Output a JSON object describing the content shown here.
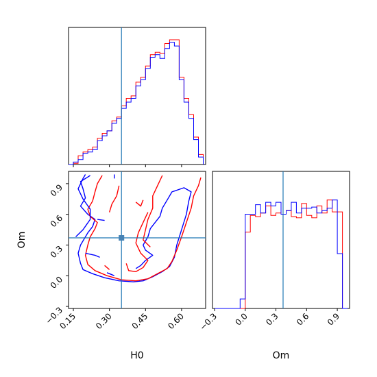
{
  "chart_data": {
    "type": "corner",
    "parameters": [
      "H0",
      "Om"
    ],
    "truth": {
      "H0": 0.35,
      "Om": 0.37
    },
    "colors": {
      "series_red": "#ff0000",
      "series_blue": "#0000ff",
      "truth": "#1f77b4"
    },
    "axes": {
      "H0": {
        "label": "H0",
        "range": [
          0.13,
          0.7
        ],
        "ticks": [
          "0.15",
          "0.30",
          "0.45",
          "0.60"
        ]
      },
      "Om": {
        "label": "Om",
        "range": [
          -0.32,
          1.02
        ],
        "ticks": [
          "−0.3",
          "0.0",
          "0.3",
          "0.6",
          "0.9"
        ]
      }
    },
    "hist_H0": {
      "edges": [
        0.13,
        0.15,
        0.17,
        0.19,
        0.21,
        0.23,
        0.25,
        0.27,
        0.29,
        0.31,
        0.33,
        0.35,
        0.37,
        0.39,
        0.41,
        0.43,
        0.45,
        0.47,
        0.49,
        0.51,
        0.53,
        0.55,
        0.57,
        0.59,
        0.61,
        0.63,
        0.65,
        0.67,
        0.69
      ],
      "series": [
        {
          "name": "",
          "color": "red",
          "values": [
            0.0,
            0.01,
            0.07,
            0.1,
            0.12,
            0.14,
            0.21,
            0.25,
            0.27,
            0.35,
            0.38,
            0.47,
            0.53,
            0.55,
            0.66,
            0.7,
            0.79,
            0.88,
            0.9,
            0.89,
            0.97,
            1.0,
            1.0,
            0.7,
            0.53,
            0.4,
            0.22,
            0.08
          ]
        },
        {
          "name": "",
          "color": "blue",
          "values": [
            0.0,
            0.02,
            0.04,
            0.09,
            0.1,
            0.12,
            0.19,
            0.23,
            0.27,
            0.33,
            0.37,
            0.45,
            0.5,
            0.53,
            0.63,
            0.68,
            0.77,
            0.86,
            0.88,
            0.85,
            0.93,
            0.98,
            0.95,
            0.68,
            0.5,
            0.37,
            0.2,
            0.06
          ]
        }
      ]
    },
    "hist_Om": {
      "edges": [
        -0.3,
        -0.25,
        -0.2,
        -0.15,
        -0.1,
        -0.05,
        0.0,
        0.05,
        0.1,
        0.15,
        0.2,
        0.25,
        0.3,
        0.35,
        0.4,
        0.45,
        0.5,
        0.55,
        0.6,
        0.65,
        0.7,
        0.75,
        0.8,
        0.85,
        0.9,
        0.95,
        1.0
      ],
      "series": [
        {
          "name": "",
          "color": "red",
          "values": [
            0,
            0,
            0,
            0,
            0,
            0.0,
            0.64,
            0.78,
            0.77,
            0.8,
            0.86,
            0.78,
            0.8,
            0.79,
            0.82,
            0.77,
            0.76,
            0.88,
            0.78,
            0.76,
            0.86,
            0.8,
            0.91,
            0.81,
            0.81,
            0.0
          ]
        },
        {
          "name": "",
          "color": "blue",
          "values": [
            0,
            0,
            0,
            0,
            0,
            0.08,
            0.79,
            0.79,
            0.87,
            0.8,
            0.89,
            0.86,
            0.89,
            0.79,
            0.82,
            0.89,
            0.8,
            0.84,
            0.84,
            0.85,
            0.8,
            0.82,
            0.84,
            0.91,
            0.46,
            0.0
          ]
        }
      ]
    },
    "contours": [
      {
        "color": "blue",
        "points": [
          [
            0.22,
            0.98
          ],
          [
            0.18,
            0.92
          ],
          [
            0.19,
            0.85
          ],
          [
            0.2,
            0.76
          ],
          [
            0.18,
            0.68
          ],
          [
            0.21,
            0.6
          ],
          [
            0.24,
            0.55
          ],
          [
            0.23,
            0.48
          ],
          [
            0.21,
            0.42
          ],
          [
            0.18,
            0.3
          ],
          [
            0.17,
            0.22
          ],
          [
            0.18,
            0.12
          ],
          [
            0.19,
            0.06
          ],
          [
            0.23,
            0.02
          ],
          [
            0.28,
            -0.02
          ],
          [
            0.34,
            -0.05
          ],
          [
            0.4,
            -0.06
          ],
          [
            0.44,
            -0.05
          ],
          [
            0.48,
            -0.01
          ],
          [
            0.52,
            0.04
          ],
          [
            0.55,
            0.09
          ],
          [
            0.57,
            0.18
          ],
          [
            0.58,
            0.3
          ],
          [
            0.6,
            0.45
          ],
          [
            0.62,
            0.6
          ],
          [
            0.63,
            0.73
          ],
          [
            0.64,
            0.82
          ],
          [
            0.61,
            0.86
          ],
          [
            0.56,
            0.82
          ],
          [
            0.54,
            0.74
          ],
          [
            0.52,
            0.66
          ],
          [
            0.51,
            0.58
          ],
          [
            0.49,
            0.52
          ],
          [
            0.47,
            0.46
          ],
          [
            0.46,
            0.38
          ],
          [
            0.44,
            0.3
          ],
          [
            0.45,
            0.25
          ],
          [
            0.48,
            0.2
          ],
          [
            0.45,
            0.15
          ],
          [
            0.43,
            0.1
          ],
          [
            0.41,
            0.07
          ]
        ]
      },
      {
        "color": "red",
        "points": [
          [
            0.27,
            0.98
          ],
          [
            0.25,
            0.9
          ],
          [
            0.24,
            0.82
          ],
          [
            0.23,
            0.73
          ],
          [
            0.21,
            0.65
          ],
          [
            0.22,
            0.58
          ],
          [
            0.25,
            0.52
          ],
          [
            0.24,
            0.46
          ],
          [
            0.22,
            0.38
          ],
          [
            0.21,
            0.3
          ],
          [
            0.2,
            0.2
          ],
          [
            0.21,
            0.11
          ],
          [
            0.24,
            0.05
          ],
          [
            0.29,
            0.0
          ],
          [
            0.35,
            -0.04
          ],
          [
            0.41,
            -0.05
          ],
          [
            0.46,
            -0.03
          ],
          [
            0.5,
            0.02
          ],
          [
            0.54,
            0.07
          ],
          [
            0.56,
            0.14
          ],
          [
            0.58,
            0.25
          ],
          [
            0.6,
            0.38
          ],
          [
            0.62,
            0.52
          ],
          [
            0.64,
            0.66
          ],
          [
            0.65,
            0.78
          ],
          [
            0.67,
            0.88
          ],
          [
            0.68,
            0.96
          ]
        ]
      },
      {
        "color": "red",
        "points": [
          [
            0.46,
            0.62
          ],
          [
            0.44,
            0.52
          ],
          [
            0.42,
            0.42
          ],
          [
            0.41,
            0.32
          ],
          [
            0.43,
            0.22
          ],
          [
            0.46,
            0.15
          ],
          [
            0.44,
            0.08
          ],
          [
            0.41,
            0.04
          ],
          [
            0.38,
            0.05
          ],
          [
            0.37,
            0.12
          ]
        ]
      },
      {
        "color": "blue",
        "points": [
          [
            0.16,
            0.38
          ],
          [
            0.19,
            0.45
          ],
          [
            0.22,
            0.55
          ],
          [
            0.22,
            0.65
          ],
          [
            0.19,
            0.75
          ],
          [
            0.17,
            0.85
          ],
          [
            0.19,
            0.95
          ],
          [
            0.2,
            0.99
          ]
        ]
      },
      {
        "color": "red",
        "points": [
          [
            0.52,
            0.98
          ],
          [
            0.5,
            0.88
          ],
          [
            0.48,
            0.78
          ],
          [
            0.48,
            0.66
          ],
          [
            0.46,
            0.55
          ],
          [
            0.45,
            0.45
          ],
          [
            0.44,
            0.35
          ],
          [
            0.47,
            0.28
          ]
        ]
      }
    ],
    "contour_marks": [
      {
        "color": "red",
        "points": [
          [
            0.34,
            0.88
          ],
          [
            0.33,
            0.78
          ],
          [
            0.31,
            0.7
          ],
          [
            0.3,
            0.62
          ]
        ]
      },
      {
        "color": "red",
        "points": [
          [
            0.41,
            0.72
          ],
          [
            0.43,
            0.68
          ],
          [
            0.44,
            0.74
          ]
        ]
      },
      {
        "color": "blue",
        "points": [
          [
            0.2,
            0.22
          ],
          [
            0.24,
            0.2
          ],
          [
            0.26,
            0.18
          ]
        ]
      },
      {
        "color": "blue",
        "points": [
          [
            0.25,
            0.55
          ],
          [
            0.28,
            0.54
          ]
        ]
      },
      {
        "color": "blue",
        "points": [
          [
            0.32,
            0.99
          ],
          [
            0.32,
            0.95
          ]
        ]
      },
      {
        "color": "blue",
        "points": [
          [
            0.29,
            0.03
          ],
          [
            0.32,
            0.0
          ]
        ]
      },
      {
        "color": "red",
        "points": [
          [
            0.28,
            0.1
          ],
          [
            0.3,
            0.06
          ]
        ]
      }
    ]
  }
}
